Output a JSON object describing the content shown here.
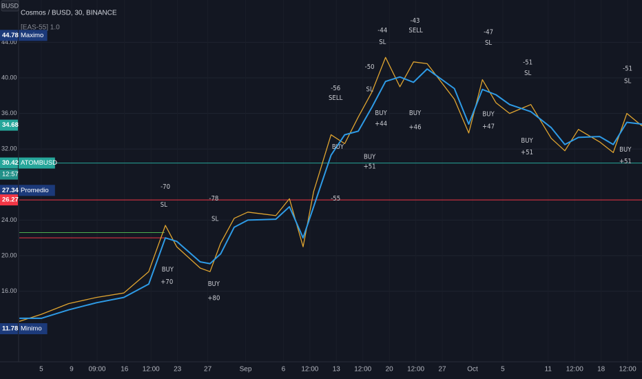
{
  "chart_data": {
    "type": "line",
    "title": "Cosmos / BUSD, 30, BINANCE",
    "subtitle": "[EAS-55] 1.0",
    "currency": "BUSD",
    "xlim": [
      2.09,
      84.4
    ],
    "ylim": [
      8.06,
      48.76
    ],
    "xticks": [
      5,
      9,
      {
        "value": 12.375,
        "label": "09:00"
      },
      16,
      {
        "value": 19.5,
        "label": "12:00"
      },
      23,
      27,
      {
        "value": 32,
        "label": "Sep"
      },
      6,
      {
        "value": 40.5,
        "label": "12:00"
      },
      13,
      {
        "value": 47.5,
        "label": "12:00"
      },
      20,
      {
        "value": 54.5,
        "label": "12:00"
      },
      27,
      {
        "value": 62,
        "label": "Oct"
      },
      5,
      11,
      {
        "value": 75.5,
        "label": "12:00"
      },
      18,
      {
        "value": 82.5,
        "label": "12:00"
      }
    ],
    "xtick_days": [
      5,
      9,
      12.375,
      16,
      19.5,
      23,
      27,
      32,
      37,
      40.5,
      44,
      47.5,
      51,
      54.5,
      58,
      62,
      66,
      72,
      75.5,
      79,
      82.5
    ],
    "yticks": [
      {
        "value": 16,
        "label": "16.00"
      },
      {
        "value": 20,
        "label": "20.00"
      },
      {
        "value": 24,
        "label": "24.00"
      },
      {
        "value": 32,
        "label": "32.00"
      },
      {
        "value": 36,
        "label": "36.00"
      },
      {
        "value": 40,
        "label": "40.00"
      },
      {
        "value": 44,
        "label": "44.00"
      }
    ],
    "grid": true,
    "series": [
      {
        "color": "#e0a530",
        "x": [
          2.1,
          5.0,
          8.6,
          12.3,
          15.9,
          19.2,
          21.4,
          22.9,
          26.0,
          27.3,
          28.7,
          30.5,
          32.3,
          36.0,
          37.8,
          39.6,
          41.0,
          43.3,
          45.1,
          46.9,
          48.7,
          50.5,
          52.4,
          54.2,
          56.0,
          59.6,
          61.5,
          63.3,
          65.1,
          66.9,
          69.7,
          72.4,
          74.2,
          76.0,
          78.8,
          80.6,
          82.4,
          84.4
        ],
        "values": [
          12.6,
          13.4,
          14.6,
          15.3,
          15.8,
          18.2,
          23.4,
          21.0,
          18.6,
          18.2,
          21.4,
          24.2,
          24.9,
          24.5,
          26.4,
          21.0,
          27.2,
          33.6,
          32.6,
          35.6,
          38.4,
          42.3,
          39.0,
          41.8,
          41.6,
          37.6,
          33.8,
          39.8,
          37.2,
          36.0,
          37.0,
          33.2,
          31.8,
          34.2,
          32.8,
          31.6,
          36.0,
          34.6
        ]
      },
      {
        "color": "#2e9be6",
        "x": [
          2.1,
          5.0,
          8.6,
          12.3,
          15.9,
          19.2,
          21.4,
          22.9,
          26.0,
          27.3,
          28.7,
          30.5,
          32.3,
          36.0,
          37.8,
          39.6,
          41.0,
          43.3,
          45.1,
          46.9,
          48.7,
          50.5,
          52.4,
          54.2,
          56.0,
          59.6,
          61.5,
          63.3,
          65.1,
          66.9,
          69.7,
          72.4,
          74.2,
          76.0,
          78.8,
          80.6,
          82.4,
          84.4
        ],
        "values": [
          12.95,
          12.95,
          13.9,
          14.7,
          15.3,
          16.8,
          22.0,
          21.6,
          19.3,
          19.1,
          20.2,
          23.2,
          24.0,
          24.1,
          25.5,
          22.0,
          25.5,
          31.3,
          33.6,
          34.0,
          36.7,
          39.6,
          40.1,
          39.5,
          41.0,
          38.8,
          34.8,
          38.7,
          38.1,
          37.0,
          36.2,
          34.4,
          32.5,
          33.3,
          33.4,
          32.5,
          35.0,
          34.8
        ]
      }
    ],
    "levels": [
      {
        "value": 30.42,
        "color": "#26a69a"
      },
      {
        "value": 26.27,
        "color": "#f23645"
      },
      {
        "value": 22.6,
        "color": "#4caf50",
        "until": 21.3
      },
      {
        "value": 22.0,
        "color": "#f23645",
        "until": 21.3
      }
    ],
    "price_tags": [
      {
        "value": 44.78,
        "label": "Maximo",
        "color": "#1c3a7a"
      },
      {
        "value": 34.68,
        "color": "#26a69a"
      },
      {
        "value": 30.42,
        "label": "ATOMBUSD",
        "countdown": "12:57",
        "color": "#26a69a"
      },
      {
        "value": 27.34,
        "label": "Promedio",
        "color": "#1c3a7a"
      },
      {
        "value": 26.27,
        "color": "#f23645"
      },
      {
        "value": 11.78,
        "label": "Minimo",
        "color": "#1c3a7a"
      }
    ],
    "annotations": [
      {
        "text": "-70",
        "x": 21.4,
        "y": 27.7
      },
      {
        "text": "SL",
        "x": 21.2,
        "y": 25.7
      },
      {
        "text": "BUY",
        "x": 21.7,
        "y": 18.4
      },
      {
        "text": "+70",
        "x": 21.6,
        "y": 17.0
      },
      {
        "text": "-78",
        "x": 27.8,
        "y": 26.4
      },
      {
        "text": "SL",
        "x": 27.96,
        "y": 24.1
      },
      {
        "text": "BUY",
        "x": 27.8,
        "y": 16.8
      },
      {
        "text": "+80",
        "x": 27.8,
        "y": 15.2
      },
      {
        "text": "-56",
        "x": 43.9,
        "y": 38.8
      },
      {
        "text": "SELL",
        "x": 43.9,
        "y": 37.7
      },
      {
        "text": "BUY",
        "x": 44.2,
        "y": 32.2
      },
      {
        "text": "-55",
        "x": 43.9,
        "y": 26.4
      },
      {
        "text": "BUY",
        "x": 48.4,
        "y": 31.1
      },
      {
        "text": "+51",
        "x": 48.4,
        "y": 30.0
      },
      {
        "text": "-50",
        "x": 48.4,
        "y": 41.2
      },
      {
        "text": "SL",
        "x": 48.4,
        "y": 38.7
      },
      {
        "text": "-44",
        "x": 50.1,
        "y": 45.3
      },
      {
        "text": "SL",
        "x": 50.1,
        "y": 44.0
      },
      {
        "text": "BUY",
        "x": 49.9,
        "y": 36.0
      },
      {
        "text": "+44",
        "x": 49.9,
        "y": 34.8
      },
      {
        "text": "-43",
        "x": 54.4,
        "y": 46.4
      },
      {
        "text": "SELL",
        "x": 54.5,
        "y": 45.3
      },
      {
        "text": "BUY",
        "x": 54.4,
        "y": 36.0
      },
      {
        "text": "+46",
        "x": 54.4,
        "y": 34.4
      },
      {
        "text": "-47",
        "x": 64.1,
        "y": 45.1
      },
      {
        "text": "SL",
        "x": 64.1,
        "y": 43.9
      },
      {
        "text": "BUY",
        "x": 64.1,
        "y": 35.9
      },
      {
        "text": "+47",
        "x": 64.1,
        "y": 34.5
      },
      {
        "text": "-51",
        "x": 69.3,
        "y": 41.7
      },
      {
        "text": "SL",
        "x": 69.3,
        "y": 40.5
      },
      {
        "text": "BUY",
        "x": 69.2,
        "y": 32.9
      },
      {
        "text": "+51",
        "x": 69.2,
        "y": 31.6
      },
      {
        "text": "-51",
        "x": 82.5,
        "y": 41.0
      },
      {
        "text": "SL",
        "x": 82.5,
        "y": 39.6
      },
      {
        "text": "BUY",
        "x": 82.2,
        "y": 31.9
      },
      {
        "text": "+51",
        "x": 82.2,
        "y": 30.6
      }
    ]
  }
}
